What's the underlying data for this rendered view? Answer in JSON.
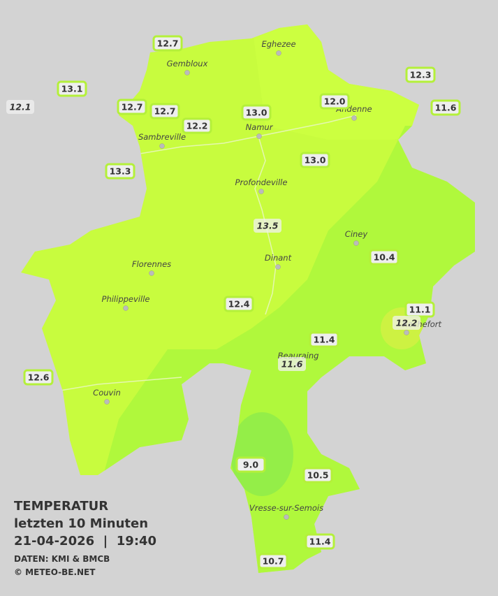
{
  "legend": {
    "title": "TEMPERATUR",
    "period": "letzten 10 Minuten",
    "datetime": "21-04-2026  |  19:40",
    "source": "DATEN: KMI & BMCB",
    "copyright": "© METEO-BE.NET"
  },
  "places": [
    "Eghezee",
    "Gembloux",
    "Andenne",
    "Namur",
    "Sambreville",
    "Profondeville",
    "Ciney",
    "Dinant",
    "Florennes",
    "Philippeville",
    "Rochefort",
    "Beauraing",
    "Couvin",
    "Vresse-sur-Semois"
  ],
  "stations": [
    "12.7",
    "13.1",
    "12.1",
    "12.7",
    "12.7",
    "12.2",
    "13.0",
    "12.0",
    "12.3",
    "11.6",
    "13.3",
    "13.0",
    "13.5",
    "10.4",
    "12.4",
    "11.1",
    "12.2",
    "11.4",
    "11.6",
    "12.6",
    "9.0",
    "10.5",
    "11.4",
    "10.7"
  ]
}
